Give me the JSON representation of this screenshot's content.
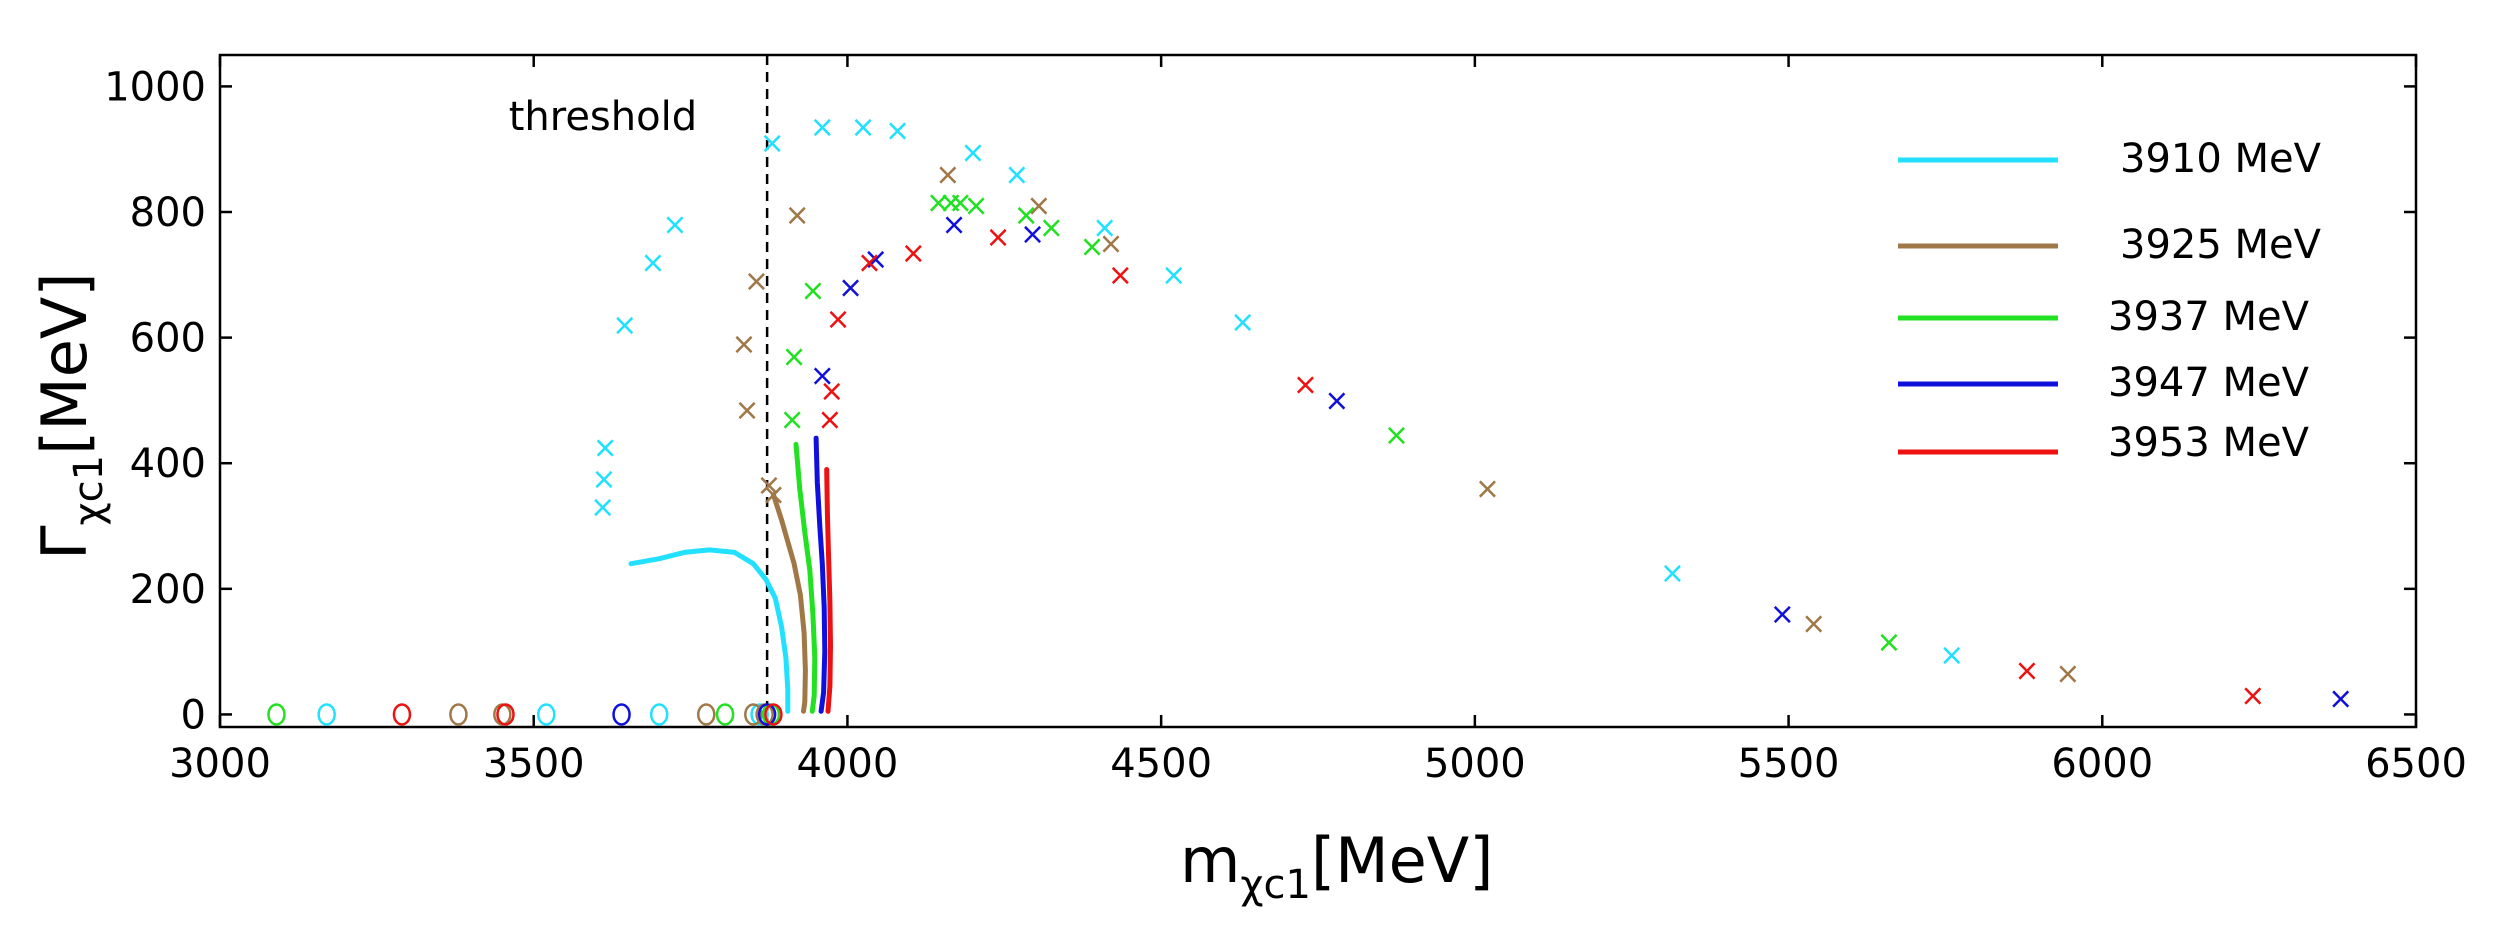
{
  "chart_data": {
    "type": "scatter",
    "xlabel": {
      "main": "m",
      "sub": "χc1",
      "unit": "[MeV]"
    },
    "ylabel": {
      "main": "Γ",
      "sub": "χc1",
      "unit": "[MeV]"
    },
    "xlim": [
      3000,
      6500
    ],
    "ylim": [
      -20,
      1050
    ],
    "x_ticks": [
      3000,
      3500,
      4000,
      4500,
      5000,
      5500,
      6000,
      6500
    ],
    "y_ticks": [
      0,
      200,
      400,
      600,
      800,
      1000
    ],
    "threshold": {
      "x": 3872,
      "label": "threshold"
    },
    "legend_position": "top-right",
    "series": [
      {
        "name": "3910 MeV",
        "color": "#22e0ff",
        "curve": [
          [
            3655,
            240
          ],
          [
            3700,
            248
          ],
          [
            3740,
            258
          ],
          [
            3780,
            262
          ],
          [
            3820,
            258
          ],
          [
            3850,
            240
          ],
          [
            3870,
            215
          ],
          [
            3885,
            185
          ],
          [
            3895,
            140
          ],
          [
            3902,
            90
          ],
          [
            3905,
            40
          ],
          [
            3905,
            5
          ]
        ],
        "poles_x": [
          [
            3610,
            330
          ],
          [
            3612,
            375
          ],
          [
            3614,
            425
          ],
          [
            3645,
            620
          ],
          [
            3690,
            720
          ],
          [
            3725,
            780
          ],
          [
            3880,
            910
          ],
          [
            3960,
            935
          ],
          [
            4025,
            935
          ],
          [
            4080,
            930
          ],
          [
            4200,
            895
          ],
          [
            4270,
            860
          ],
          [
            4410,
            775
          ],
          [
            4520,
            700
          ],
          [
            4630,
            625
          ],
          [
            5315,
            225
          ],
          [
            5760,
            95
          ]
        ],
        "poles_o": [
          [
            3170,
            0
          ],
          [
            3520,
            0
          ],
          [
            3700,
            0
          ],
          [
            3860,
            0
          ]
        ]
      },
      {
        "name": "3925 MeV",
        "color": "#a07848",
        "curve": [
          [
            3882,
            350
          ],
          [
            3895,
            310
          ],
          [
            3905,
            275
          ],
          [
            3915,
            240
          ],
          [
            3925,
            190
          ],
          [
            3931,
            130
          ],
          [
            3933,
            70
          ],
          [
            3932,
            20
          ],
          [
            3930,
            5
          ]
        ],
        "poles_x": [
          [
            3840,
            485
          ],
          [
            3835,
            590
          ],
          [
            3855,
            690
          ],
          [
            3875,
            365
          ],
          [
            3882,
            350
          ],
          [
            3920,
            795
          ],
          [
            4160,
            860
          ],
          [
            4305,
            810
          ],
          [
            4420,
            750
          ],
          [
            5020,
            360
          ],
          [
            5540,
            145
          ],
          [
            5945,
            65
          ]
        ],
        "poles_o": [
          [
            3380,
            0
          ],
          [
            3450,
            0
          ],
          [
            3775,
            0
          ],
          [
            3850,
            0
          ],
          [
            3868,
            0
          ]
        ]
      },
      {
        "name": "3937 MeV",
        "color": "#22e022",
        "curve": [
          [
            3918,
            430
          ],
          [
            3924,
            360
          ],
          [
            3932,
            290
          ],
          [
            3940,
            230
          ],
          [
            3945,
            160
          ],
          [
            3948,
            90
          ],
          [
            3947,
            30
          ],
          [
            3944,
            5
          ]
        ],
        "poles_x": [
          [
            3912,
            470
          ],
          [
            3915,
            570
          ],
          [
            3945,
            675
          ],
          [
            4145,
            815
          ],
          [
            4165,
            815
          ],
          [
            4180,
            815
          ],
          [
            4205,
            810
          ],
          [
            4285,
            795
          ],
          [
            4325,
            775
          ],
          [
            4390,
            745
          ],
          [
            4875,
            445
          ],
          [
            5660,
            115
          ]
        ],
        "poles_o": [
          [
            3090,
            0
          ],
          [
            3805,
            0
          ],
          [
            3878,
            0
          ]
        ]
      },
      {
        "name": "3947 MeV",
        "color": "#1010dd",
        "curve": [
          [
            3950,
            440
          ],
          [
            3952,
            370
          ],
          [
            3956,
            300
          ],
          [
            3960,
            240
          ],
          [
            3963,
            170
          ],
          [
            3964,
            100
          ],
          [
            3962,
            35
          ],
          [
            3958,
            5
          ]
        ],
        "poles_x": [
          [
            3960,
            540
          ],
          [
            4005,
            680
          ],
          [
            4045,
            725
          ],
          [
            4170,
            780
          ],
          [
            4295,
            765
          ],
          [
            4780,
            500
          ],
          [
            5490,
            160
          ],
          [
            6380,
            25
          ]
        ],
        "poles_o": [
          [
            3640,
            0
          ],
          [
            3872,
            0
          ]
        ]
      },
      {
        "name": "3953 MeV",
        "color": "#ee1111",
        "curve": [
          [
            3967,
            390
          ],
          [
            3968,
            320
          ],
          [
            3970,
            250
          ],
          [
            3972,
            180
          ],
          [
            3973,
            110
          ],
          [
            3972,
            45
          ],
          [
            3969,
            5
          ]
        ],
        "poles_x": [
          [
            3972,
            470
          ],
          [
            3975,
            515
          ],
          [
            3985,
            630
          ],
          [
            4035,
            720
          ],
          [
            4105,
            735
          ],
          [
            4240,
            760
          ],
          [
            4435,
            700
          ],
          [
            4730,
            525
          ],
          [
            5880,
            70
          ],
          [
            6240,
            30
          ]
        ],
        "poles_o": [
          [
            3290,
            0
          ],
          [
            3455,
            0
          ],
          [
            3882,
            0
          ]
        ]
      }
    ]
  }
}
